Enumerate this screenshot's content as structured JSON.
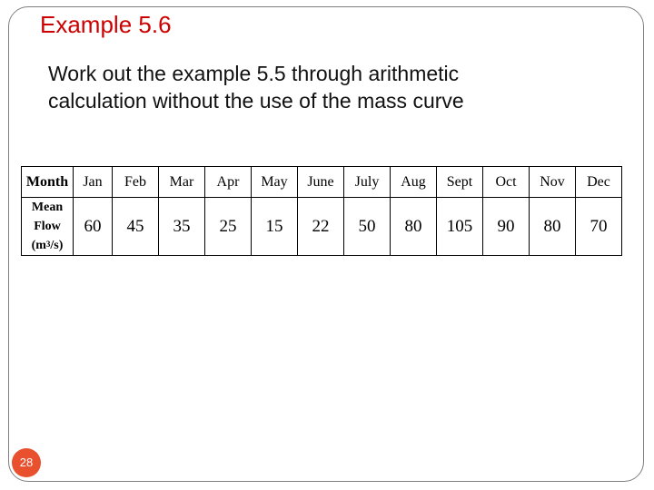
{
  "slide": {
    "title": "Example 5.6",
    "body_line_1": "Work out the example 5.5 through arithmetic",
    "body_line_2": "calculation without the use of the mass curve",
    "page_number": "28",
    "title_color": "#cc0000",
    "page_badge_color": "#e8502e"
  },
  "table": {
    "header_label": "Month",
    "row_label_line1": "Mean",
    "row_label_line2": "Flow",
    "row_label_unit_pre": "(m",
    "row_label_unit_sup": "3",
    "row_label_unit_post": "/s)",
    "months": [
      "Jan",
      "Feb",
      "Mar",
      "Apr",
      "May",
      "June",
      "July",
      "Aug",
      "Sept",
      "Oct",
      "Nov",
      "Dec"
    ],
    "flows": [
      "60",
      "45",
      "35",
      "25",
      "15",
      "22",
      "50",
      "80",
      "105",
      "90",
      "80",
      "70"
    ]
  }
}
